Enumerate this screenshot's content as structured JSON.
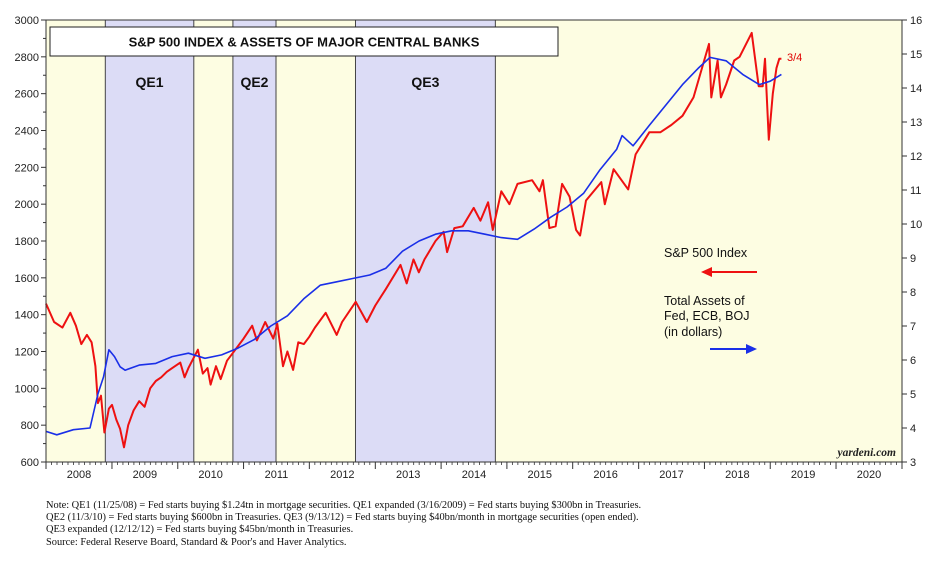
{
  "chart_data": {
    "type": "line",
    "title": "S&P 500 INDEX & ASSETS OF MAJOR CENTRAL BANKS",
    "x_range": [
      "2008-01-01",
      "2021-01-01"
    ],
    "x_tick_labels": [
      "2008",
      "2009",
      "2010",
      "2011",
      "2012",
      "2013",
      "2014",
      "2015",
      "2016",
      "2017",
      "2018",
      "2019",
      "2020"
    ],
    "y_left": {
      "min": 600,
      "max": 3000,
      "tick_step": 200,
      "ticks": [
        "600",
        "800",
        "1000",
        "1200",
        "1400",
        "1600",
        "1800",
        "2000",
        "2200",
        "2400",
        "2600",
        "2800",
        "3000"
      ]
    },
    "y_right": {
      "min": 3,
      "max": 16,
      "tick_step": 1,
      "ticks": [
        "3",
        "4",
        "5",
        "6",
        "7",
        "8",
        "9",
        "10",
        "11",
        "12",
        "13",
        "14",
        "15",
        "16"
      ]
    },
    "shaded_periods": [
      {
        "label": "QE1",
        "start": "2008-11-25",
        "end": "2010-03-31"
      },
      {
        "label": "QE2",
        "start": "2010-11-03",
        "end": "2011-06-30"
      },
      {
        "label": "QE3",
        "start": "2012-09-13",
        "end": "2014-10-29"
      }
    ],
    "series": [
      {
        "name": "S&P 500 Index",
        "axis": "left",
        "color": "#ee1111",
        "points": [
          [
            "2008-01-01",
            1460
          ],
          [
            "2008-02-15",
            1360
          ],
          [
            "2008-04-01",
            1330
          ],
          [
            "2008-05-15",
            1410
          ],
          [
            "2008-06-15",
            1340
          ],
          [
            "2008-07-15",
            1240
          ],
          [
            "2008-08-15",
            1290
          ],
          [
            "2008-09-10",
            1250
          ],
          [
            "2008-10-01",
            1120
          ],
          [
            "2008-10-15",
            920
          ],
          [
            "2008-11-01",
            960
          ],
          [
            "2008-11-20",
            760
          ],
          [
            "2008-12-15",
            890
          ],
          [
            "2009-01-01",
            910
          ],
          [
            "2009-01-25",
            830
          ],
          [
            "2009-02-15",
            780
          ],
          [
            "2009-03-09",
            680
          ],
          [
            "2009-04-01",
            800
          ],
          [
            "2009-05-01",
            880
          ],
          [
            "2009-06-01",
            930
          ],
          [
            "2009-07-01",
            900
          ],
          [
            "2009-08-01",
            1000
          ],
          [
            "2009-09-01",
            1040
          ],
          [
            "2009-10-01",
            1060
          ],
          [
            "2009-11-01",
            1090
          ],
          [
            "2009-12-01",
            1110
          ],
          [
            "2010-01-15",
            1140
          ],
          [
            "2010-02-08",
            1060
          ],
          [
            "2010-03-01",
            1110
          ],
          [
            "2010-04-23",
            1210
          ],
          [
            "2010-05-20",
            1080
          ],
          [
            "2010-06-15",
            1110
          ],
          [
            "2010-07-02",
            1020
          ],
          [
            "2010-08-01",
            1120
          ],
          [
            "2010-08-27",
            1050
          ],
          [
            "2010-10-01",
            1150
          ],
          [
            "2010-11-01",
            1190
          ],
          [
            "2011-01-01",
            1270
          ],
          [
            "2011-02-18",
            1340
          ],
          [
            "2011-03-16",
            1260
          ],
          [
            "2011-05-01",
            1360
          ],
          [
            "2011-06-15",
            1270
          ],
          [
            "2011-07-07",
            1350
          ],
          [
            "2011-08-08",
            1120
          ],
          [
            "2011-09-01",
            1200
          ],
          [
            "2011-10-03",
            1100
          ],
          [
            "2011-11-01",
            1250
          ],
          [
            "2011-12-01",
            1240
          ],
          [
            "2012-01-01",
            1280
          ],
          [
            "2012-02-01",
            1330
          ],
          [
            "2012-04-01",
            1410
          ],
          [
            "2012-06-01",
            1290
          ],
          [
            "2012-07-01",
            1360
          ],
          [
            "2012-09-14",
            1470
          ],
          [
            "2012-11-15",
            1360
          ],
          [
            "2013-01-01",
            1450
          ],
          [
            "2013-03-01",
            1540
          ],
          [
            "2013-05-21",
            1670
          ],
          [
            "2013-06-24",
            1570
          ],
          [
            "2013-08-01",
            1700
          ],
          [
            "2013-08-30",
            1630
          ],
          [
            "2013-10-01",
            1700
          ],
          [
            "2013-12-01",
            1800
          ],
          [
            "2014-01-15",
            1850
          ],
          [
            "2014-02-03",
            1740
          ],
          [
            "2014-03-15",
            1870
          ],
          [
            "2014-05-01",
            1880
          ],
          [
            "2014-07-01",
            1980
          ],
          [
            "2014-08-07",
            1910
          ],
          [
            "2014-09-19",
            2010
          ],
          [
            "2014-10-15",
            1860
          ],
          [
            "2014-12-01",
            2070
          ],
          [
            "2015-01-15",
            2000
          ],
          [
            "2015-03-01",
            2110
          ],
          [
            "2015-05-21",
            2130
          ],
          [
            "2015-07-01",
            2070
          ],
          [
            "2015-07-20",
            2130
          ],
          [
            "2015-08-25",
            1870
          ],
          [
            "2015-09-28",
            1880
          ],
          [
            "2015-11-03",
            2110
          ],
          [
            "2015-12-15",
            2040
          ],
          [
            "2016-01-20",
            1860
          ],
          [
            "2016-02-11",
            1830
          ],
          [
            "2016-03-15",
            2020
          ],
          [
            "2016-06-08",
            2120
          ],
          [
            "2016-06-27",
            2000
          ],
          [
            "2016-08-15",
            2190
          ],
          [
            "2016-11-04",
            2080
          ],
          [
            "2016-12-15",
            2270
          ],
          [
            "2017-03-01",
            2390
          ],
          [
            "2017-05-01",
            2390
          ],
          [
            "2017-07-01",
            2430
          ],
          [
            "2017-09-01",
            2480
          ],
          [
            "2017-11-01",
            2580
          ],
          [
            "2018-01-26",
            2870
          ],
          [
            "2018-02-08",
            2580
          ],
          [
            "2018-03-15",
            2780
          ],
          [
            "2018-04-02",
            2580
          ],
          [
            "2018-05-01",
            2650
          ],
          [
            "2018-06-15",
            2780
          ],
          [
            "2018-07-15",
            2800
          ],
          [
            "2018-09-20",
            2930
          ],
          [
            "2018-10-29",
            2640
          ],
          [
            "2018-11-20",
            2640
          ],
          [
            "2018-12-03",
            2790
          ],
          [
            "2018-12-24",
            2350
          ],
          [
            "2019-01-15",
            2600
          ],
          [
            "2019-02-05",
            2740
          ],
          [
            "2019-02-20",
            2790
          ],
          [
            "2019-03-04",
            2790
          ]
        ]
      },
      {
        "name": "Total Assets of Fed, ECB, BOJ (in dollars)",
        "axis": "right",
        "color": "#1a2fe8",
        "points": [
          [
            "2008-01-01",
            3.9
          ],
          [
            "2008-03-01",
            3.8
          ],
          [
            "2008-06-01",
            3.95
          ],
          [
            "2008-09-01",
            4.0
          ],
          [
            "2008-10-15",
            5.0
          ],
          [
            "2008-11-15",
            5.5
          ],
          [
            "2008-12-15",
            6.3
          ],
          [
            "2009-01-15",
            6.1
          ],
          [
            "2009-02-15",
            5.8
          ],
          [
            "2009-03-15",
            5.7
          ],
          [
            "2009-06-01",
            5.85
          ],
          [
            "2009-09-01",
            5.9
          ],
          [
            "2009-12-01",
            6.1
          ],
          [
            "2010-03-01",
            6.2
          ],
          [
            "2010-06-01",
            6.05
          ],
          [
            "2010-09-01",
            6.15
          ],
          [
            "2010-12-01",
            6.35
          ],
          [
            "2011-03-01",
            6.6
          ],
          [
            "2011-06-01",
            7.0
          ],
          [
            "2011-09-01",
            7.3
          ],
          [
            "2011-12-01",
            7.8
          ],
          [
            "2012-03-01",
            8.2
          ],
          [
            "2012-06-01",
            8.3
          ],
          [
            "2012-09-01",
            8.4
          ],
          [
            "2012-12-01",
            8.5
          ],
          [
            "2013-03-01",
            8.7
          ],
          [
            "2013-06-01",
            9.2
          ],
          [
            "2013-09-01",
            9.5
          ],
          [
            "2013-12-01",
            9.7
          ],
          [
            "2014-03-01",
            9.8
          ],
          [
            "2014-06-01",
            9.8
          ],
          [
            "2014-09-01",
            9.7
          ],
          [
            "2014-12-01",
            9.6
          ],
          [
            "2015-03-01",
            9.55
          ],
          [
            "2015-06-01",
            9.85
          ],
          [
            "2015-09-01",
            10.2
          ],
          [
            "2015-12-01",
            10.5
          ],
          [
            "2016-03-01",
            10.9
          ],
          [
            "2016-06-01",
            11.6
          ],
          [
            "2016-09-01",
            12.2
          ],
          [
            "2016-10-01",
            12.6
          ],
          [
            "2016-12-01",
            12.3
          ],
          [
            "2017-03-01",
            12.9
          ],
          [
            "2017-06-01",
            13.5
          ],
          [
            "2017-09-01",
            14.1
          ],
          [
            "2017-12-01",
            14.6
          ],
          [
            "2018-02-01",
            14.9
          ],
          [
            "2018-05-01",
            14.8
          ],
          [
            "2018-08-01",
            14.4
          ],
          [
            "2018-11-01",
            14.1
          ],
          [
            "2019-01-01",
            14.2
          ],
          [
            "2019-03-04",
            14.4
          ]
        ]
      }
    ],
    "annotations": {
      "last_date_label": "3/4"
    },
    "legend": [
      {
        "label": "S&P 500 Index",
        "color": "#ee1111",
        "arrow": "left"
      },
      {
        "label_lines": [
          "Total Assets of",
          "Fed, ECB, BOJ",
          "(in dollars)"
        ],
        "color": "#1a2fe8",
        "arrow": "right"
      }
    ],
    "plot_background": "#fdfde2",
    "band_color": "#dcdcf6",
    "source_mark": "yardeni.com"
  },
  "notes": [
    "Note: QE1 (11/25/08) = Fed starts buying $1.24tn in mortgage securities. QE1 expanded (3/16/2009) = Fed starts buying $300bn in Treasuries.",
    "QE2 (11/3/10) = Fed starts buying $600bn in Treasuries. QE3 (9/13/12) = Fed starts buying $40bn/month in mortgage securities (open ended).",
    "QE3 expanded (12/12/12) = Fed starts buying $45bn/month in Treasuries.",
    "Source: Federal Reserve Board, Standard & Poor's and Haver Analytics."
  ]
}
